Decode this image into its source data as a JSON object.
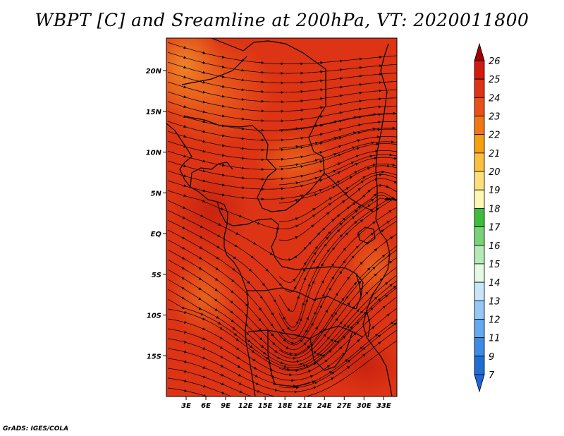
{
  "title": "WBPT [C] and Sreamline at 200hPa, VT: 2020011800",
  "credit": "GrADS: IGES/COLA",
  "map": {
    "lon_range": [
      0,
      35
    ],
    "lat_range": [
      -20,
      24
    ],
    "lat_ticks": [
      {
        "value": 20,
        "label": "20N"
      },
      {
        "value": 15,
        "label": "15N"
      },
      {
        "value": 10,
        "label": "10N"
      },
      {
        "value": 5,
        "label": "5N"
      },
      {
        "value": 0,
        "label": "EQ"
      },
      {
        "value": -5,
        "label": "5S"
      },
      {
        "value": -10,
        "label": "10S"
      },
      {
        "value": -15,
        "label": "15S"
      }
    ],
    "lon_ticks": [
      {
        "value": 3,
        "label": "3E"
      },
      {
        "value": 6,
        "label": "6E"
      },
      {
        "value": 9,
        "label": "9E"
      },
      {
        "value": 12,
        "label": "12E"
      },
      {
        "value": 15,
        "label": "15E"
      },
      {
        "value": 18,
        "label": "18E"
      },
      {
        "value": 21,
        "label": "21E"
      },
      {
        "value": 24,
        "label": "24E"
      },
      {
        "value": 27,
        "label": "27E"
      },
      {
        "value": 30,
        "label": "30E"
      },
      {
        "value": 33,
        "label": "33E"
      }
    ],
    "field_colors": {
      "base": "#dc3414",
      "warm": "#c82010",
      "cool": "#f07a1e",
      "pale": "#f5a23a"
    },
    "streamline_color": "#000000"
  },
  "colorbar": {
    "levels": [
      {
        "label": "26",
        "color": "#b40000"
      },
      {
        "label": "25",
        "color": "#d21a0e"
      },
      {
        "label": "24",
        "color": "#e03214"
      },
      {
        "label": "23",
        "color": "#e85018"
      },
      {
        "label": "22",
        "color": "#f07814"
      },
      {
        "label": "21",
        "color": "#f6a010"
      },
      {
        "label": "20",
        "color": "#fac040"
      },
      {
        "label": "19",
        "color": "#fde07a"
      },
      {
        "label": "18",
        "color": "#fff8b4"
      },
      {
        "label": "17",
        "color": "#3cbe3c"
      },
      {
        "label": "16",
        "color": "#78d278"
      },
      {
        "label": "15",
        "color": "#b4eab4"
      },
      {
        "label": "14",
        "color": "#e4fae4"
      },
      {
        "label": "13",
        "color": "#c8e6fa"
      },
      {
        "label": "12",
        "color": "#96c8f5"
      },
      {
        "label": "11",
        "color": "#64aaf0"
      },
      {
        "label": "9",
        "color": "#3c8ce6"
      },
      {
        "label": "7",
        "color": "#1e6ed2"
      }
    ],
    "top_arrow_color": "#a00000",
    "bottom_arrow_color": "#1e64dc"
  }
}
